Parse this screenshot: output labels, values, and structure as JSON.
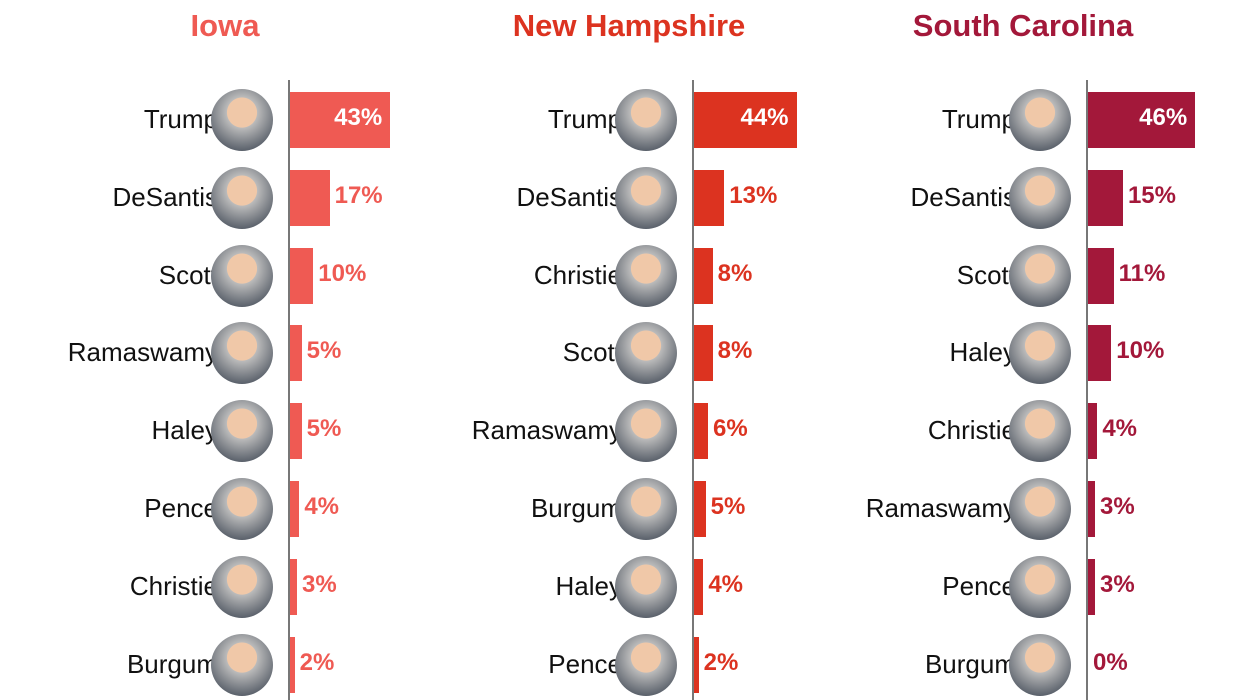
{
  "chart_data": [
    {
      "type": "bar",
      "orientation": "horizontal",
      "title": "Iowa",
      "color": "#ef5a53",
      "xlim": [
        0,
        50
      ],
      "categories": [
        "Trump",
        "DeSantis",
        "Scott",
        "Ramaswamy",
        "Haley",
        "Pence",
        "Christie",
        "Burgum"
      ],
      "values": [
        43,
        17,
        10,
        5,
        5,
        4,
        3,
        2
      ],
      "labels": [
        "43%",
        "17%",
        "10%",
        "5%",
        "5%",
        "4%",
        "3%",
        "2%"
      ]
    },
    {
      "type": "bar",
      "orientation": "horizontal",
      "title": "New Hampshire",
      "color": "#dc3320",
      "xlim": [
        0,
        50
      ],
      "categories": [
        "Trump",
        "DeSantis",
        "Christie",
        "Scott",
        "Ramaswamy",
        "Burgum",
        "Haley",
        "Pence"
      ],
      "values": [
        44,
        13,
        8,
        8,
        6,
        5,
        4,
        2
      ],
      "labels": [
        "44%",
        "13%",
        "8%",
        "8%",
        "6%",
        "5%",
        "4%",
        "2%"
      ]
    },
    {
      "type": "bar",
      "orientation": "horizontal",
      "title": "South Carolina",
      "color": "#a3183a",
      "xlim": [
        0,
        50
      ],
      "categories": [
        "Trump",
        "DeSantis",
        "Scott",
        "Haley",
        "Christie",
        "Ramaswamy",
        "Pence",
        "Burgum"
      ],
      "values": [
        46,
        15,
        11,
        10,
        4,
        3,
        3,
        0
      ],
      "labels": [
        "46%",
        "15%",
        "11%",
        "10%",
        "4%",
        "3%",
        "3%",
        "0%"
      ]
    }
  ]
}
